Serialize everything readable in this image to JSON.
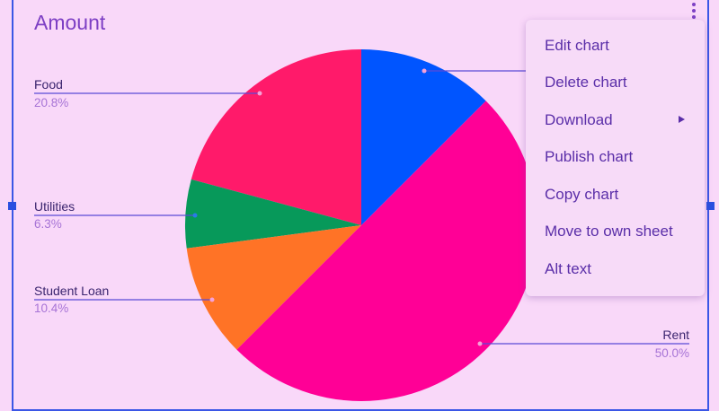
{
  "chart_data": {
    "type": "pie",
    "title": "Amount",
    "slices": [
      {
        "label": "Food",
        "value": 20.8,
        "pct_label": "20.8%",
        "color": "#ff1a6a"
      },
      {
        "label": "Utilities",
        "value": 6.3,
        "pct_label": "6.3%",
        "color": "#07995a"
      },
      {
        "label": "Student Loan",
        "value": 10.4,
        "pct_label": "10.4%",
        "color": "#ff7326"
      },
      {
        "label": "Rent",
        "value": 50.0,
        "pct_label": "50.0%",
        "color": "#ff0096"
      },
      {
        "label": "",
        "value": 12.5,
        "pct_label": "",
        "color": "#0055ff"
      }
    ]
  },
  "menu": {
    "items": [
      {
        "label": "Edit chart"
      },
      {
        "label": "Delete chart"
      },
      {
        "label": "Download",
        "submenu": true
      },
      {
        "label": "Publish chart"
      },
      {
        "label": "Copy chart"
      },
      {
        "label": "Move to own sheet"
      },
      {
        "label": "Alt text"
      }
    ]
  },
  "colors": {
    "accent": "#7d3fc4",
    "frame": "#3b57e6",
    "leader": "#5a4ad6"
  },
  "icons": {
    "more": "more-vert-icon",
    "submenu": "chevron-right-icon"
  }
}
